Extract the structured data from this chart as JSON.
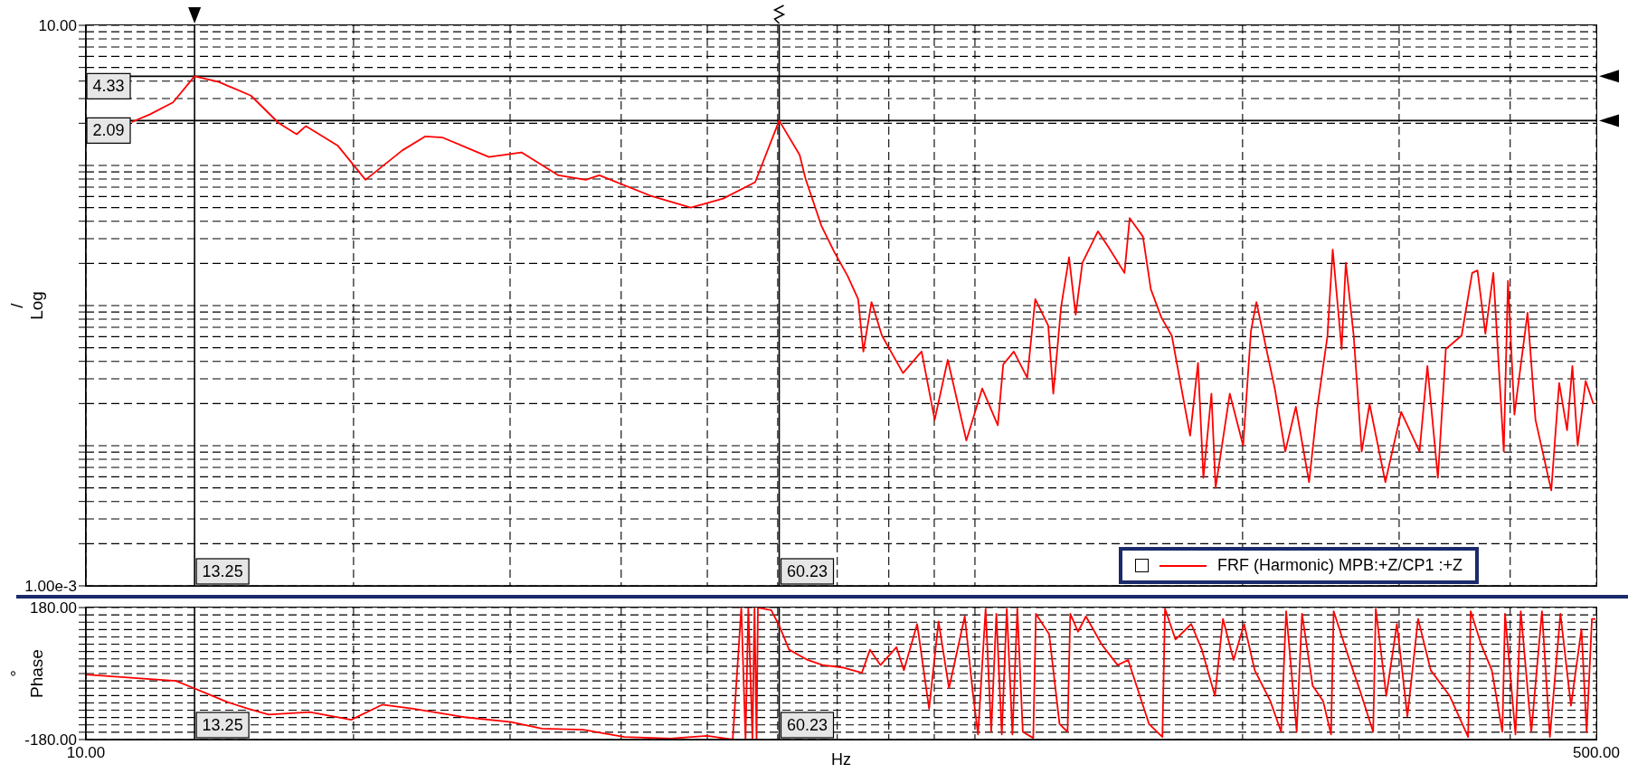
{
  "chart_data": [
    {
      "type": "line",
      "ylabel": "/ Log",
      "log": "xy",
      "grid": true,
      "legend": "bottom right",
      "marker": "none",
      "line_style": "solid",
      "tick_labels": "y",
      "xlim": [
        10,
        500
      ],
      "xticks": [
        {
          "value": 10,
          "label": null
        },
        {
          "value": 20,
          "label": null
        },
        {
          "value": 30,
          "label": null
        },
        {
          "value": 40,
          "label": null
        },
        {
          "value": 50,
          "label": null
        },
        {
          "value": 60,
          "label": null
        },
        {
          "value": 70,
          "label": null
        },
        {
          "value": 80,
          "label": null
        },
        {
          "value": 90,
          "label": null
        },
        {
          "value": 100,
          "label": null
        },
        {
          "value": 200,
          "label": null
        },
        {
          "value": 300,
          "label": null
        },
        {
          "value": 400,
          "label": null
        },
        {
          "value": 500,
          "label": null
        }
      ],
      "ylim": [
        0.001,
        10
      ],
      "yticks": [
        {
          "value": 0.001,
          "label": "1.00e-3"
        },
        {
          "value": 0.002,
          "label": null
        },
        {
          "value": 0.003,
          "label": null
        },
        {
          "value": 0.004,
          "label": null
        },
        {
          "value": 0.005,
          "label": null
        },
        {
          "value": 0.006,
          "label": null
        },
        {
          "value": 0.007,
          "label": null
        },
        {
          "value": 0.008,
          "label": null
        },
        {
          "value": 0.009,
          "label": null
        },
        {
          "value": 0.01,
          "label": null
        },
        {
          "value": 0.02,
          "label": null
        },
        {
          "value": 0.03,
          "label": null
        },
        {
          "value": 0.04,
          "label": null
        },
        {
          "value": 0.05,
          "label": null
        },
        {
          "value": 0.06,
          "label": null
        },
        {
          "value": 0.07,
          "label": null
        },
        {
          "value": 0.08,
          "label": null
        },
        {
          "value": 0.09,
          "label": null
        },
        {
          "value": 0.1,
          "label": null
        },
        {
          "value": 0.2,
          "label": null
        },
        {
          "value": 0.3,
          "label": null
        },
        {
          "value": 0.4,
          "label": null
        },
        {
          "value": 0.5,
          "label": null
        },
        {
          "value": 0.6,
          "label": null
        },
        {
          "value": 0.7,
          "label": null
        },
        {
          "value": 0.8,
          "label": null
        },
        {
          "value": 0.9,
          "label": null
        },
        {
          "value": 1,
          "label": null
        },
        {
          "value": 2,
          "label": null
        },
        {
          "value": 3,
          "label": null
        },
        {
          "value": 4,
          "label": null
        },
        {
          "value": 5,
          "label": null
        },
        {
          "value": 6,
          "label": null
        },
        {
          "value": 7,
          "label": null
        },
        {
          "value": 8,
          "label": null
        },
        {
          "value": 9,
          "label": null
        },
        {
          "value": 10,
          "label": "10.00"
        }
      ],
      "ref_lines": [
        {
          "axis": "y",
          "value": 4.33,
          "label": "4.33"
        },
        {
          "axis": "y",
          "value": 2.09,
          "label": "2.09"
        },
        {
          "axis": "x",
          "value": 13.25,
          "label": "13.25"
        },
        {
          "axis": "x",
          "value": 60.23,
          "label": "60.23"
        }
      ],
      "series": [
        {
          "name": "FRF (Harmonic) MPB:+Z/CP1 :+Z",
          "color": "#ff0000",
          "x": [
            11.26,
            11.81,
            12.53,
            13.25,
            14.11,
            15.33,
            16.47,
            17.26,
            17.68,
            19.21,
            20.63,
            22.69,
            24.07,
            25.2,
            28.4,
            30.9,
            34.0,
            36.5,
            37.8,
            43.1,
            47.9,
            52.1,
            56.6,
            60.23,
            63.5,
            64.5,
            67.2,
            69.5,
            71.9,
            73.9,
            74.9,
            76.5,
            78.6,
            83.0,
            87.1,
            90.1,
            93.2,
            97.8,
            101.9,
            106.1,
            107.6,
            110.6,
            114.5,
            116.9,
            120.9,
            122.5,
            125.0,
            127.6,
            129.8,
            132.1,
            137.5,
            141.3,
            147.3,
            149.3,
            154.5,
            157.7,
            162.1,
            166.5,
            174.6,
            178.2,
            180.7,
            184.5,
            186.5,
            193.5,
            200.3,
            204.4,
            207.3,
            217.4,
            223.4,
            229.6,
            237.6,
            242.5,
            249.2,
            252.6,
            258.5,
            261.3,
            266.7,
            272.3,
            277.9,
            289.5,
            301.6,
            316.3,
            322.8,
            331.7,
            338.6,
            352.7,
            362.5,
            367.5,
            375.1,
            382.9,
            393.4,
            397.7,
            404.4,
            418.4,
            427.1,
            444.9,
            454.1,
            463.5,
            469.9,
            476.4,
            486.3,
            496.3
          ],
          "values": [
            2.04,
            2.32,
            2.82,
            4.33,
            3.94,
            3.15,
            2.01,
            1.67,
            1.91,
            1.38,
            0.79,
            1.28,
            1.61,
            1.58,
            1.15,
            1.24,
            0.85,
            0.79,
            0.85,
            0.61,
            0.5,
            0.58,
            0.76,
            2.09,
            1.19,
            0.8,
            0.37,
            0.24,
            0.163,
            0.111,
            0.047,
            0.106,
            0.061,
            0.033,
            0.047,
            0.0153,
            0.041,
            0.0109,
            0.0256,
            0.014,
            0.038,
            0.047,
            0.0305,
            0.111,
            0.072,
            0.0235,
            0.098,
            0.221,
            0.086,
            0.202,
            0.339,
            0.262,
            0.171,
            0.421,
            0.311,
            0.131,
            0.082,
            0.061,
            0.0118,
            0.039,
            0.0059,
            0.0235,
            0.005,
            0.0235,
            0.01,
            0.066,
            0.106,
            0.0256,
            0.0091,
            0.019,
            0.0055,
            0.018,
            0.061,
            0.251,
            0.049,
            0.202,
            0.061,
            0.0091,
            0.0198,
            0.0055,
            0.0174,
            0.0091,
            0.037,
            0.0059,
            0.049,
            0.061,
            0.171,
            0.178,
            0.063,
            0.171,
            0.0091,
            0.15,
            0.0167,
            0.089,
            0.0153,
            0.0048,
            0.028,
            0.0129,
            0.037,
            0.01,
            0.029,
            0.0198
          ]
        }
      ]
    },
    {
      "type": "line",
      "ylabel": "° Phase",
      "xlabel": "Hz",
      "log": "x",
      "grid": true,
      "marker": "none",
      "line_style": "solid",
      "xlim": [
        10,
        500
      ],
      "xticks": [
        {
          "value": 10,
          "label": "10.00"
        },
        {
          "value": 20,
          "label": null
        },
        {
          "value": 30,
          "label": null
        },
        {
          "value": 40,
          "label": null
        },
        {
          "value": 50,
          "label": null
        },
        {
          "value": 60,
          "label": null
        },
        {
          "value": 70,
          "label": null
        },
        {
          "value": 80,
          "label": null
        },
        {
          "value": 90,
          "label": null
        },
        {
          "value": 100,
          "label": null
        },
        {
          "value": 200,
          "label": null
        },
        {
          "value": 300,
          "label": null
        },
        {
          "value": 400,
          "label": null
        },
        {
          "value": 500,
          "label": "500.00"
        }
      ],
      "ylim": [
        -180,
        180
      ],
      "yticks": [
        {
          "value": -180,
          "label": "-180.00"
        },
        {
          "value": -160,
          "label": null
        },
        {
          "value": -140,
          "label": null
        },
        {
          "value": -120,
          "label": null
        },
        {
          "value": -100,
          "label": null
        },
        {
          "value": -80,
          "label": null
        },
        {
          "value": -60,
          "label": null
        },
        {
          "value": -40,
          "label": null
        },
        {
          "value": -20,
          "label": null
        },
        {
          "value": 0,
          "label": null
        },
        {
          "value": 20,
          "label": null
        },
        {
          "value": 40,
          "label": null
        },
        {
          "value": 60,
          "label": null
        },
        {
          "value": 80,
          "label": null
        },
        {
          "value": 100,
          "label": null
        },
        {
          "value": 120,
          "label": null
        },
        {
          "value": 140,
          "label": null
        },
        {
          "value": 160,
          "label": null
        },
        {
          "value": 180,
          "label": "180.00"
        }
      ],
      "ref_lines": [
        {
          "axis": "x",
          "value": 13.25,
          "label": "13.25"
        },
        {
          "axis": "x",
          "value": 60.23,
          "label": "60.23"
        }
      ],
      "series": [
        {
          "color": "#ff0000",
          "x": [
            10,
            11.05,
            12.62,
            13.14,
            14.43,
            15.22,
            16.05,
            17.86,
            19.88,
            21.54,
            23.33,
            26.66,
            30.07,
            32.58,
            36.25,
            40.34,
            45.49,
            49.95,
            53.4,
            54.6,
            55.2,
            55.6,
            56.2,
            56.5,
            56.8,
            57.0,
            59.0,
            60.2,
            61.8,
            64.7,
            67.4,
            71.2,
            74.6,
            76.2,
            78.3,
            81.6,
            83.2,
            86.1,
            88.8,
            91.0,
            93.5,
            97.4,
            99.4,
            100.8,
            102.8,
            104.3,
            105.7,
            107.2,
            108.6,
            110.2,
            111.6,
            113.2,
            116.3,
            117.1,
            121.2,
            124.5,
            127.1,
            128.0,
            130.6,
            133.3,
            138.9,
            144.7,
            148.7,
            157.0,
            162.5,
            163.6,
            168.1,
            175.1,
            180.0,
            186.2,
            190.1,
            195.4,
            200.8,
            206.4,
            214.9,
            221.0,
            223.9,
            230.1,
            233.3,
            239.8,
            246.4,
            251.5,
            253.2,
            263.8,
            271.1,
            280.5,
            282.4,
            290.2,
            298.3,
            306.5,
            315.1,
            325.6,
            342.0,
            358.7,
            361.1,
            371.1,
            381.4,
            392.0,
            394.7,
            405.5,
            411.1,
            422.5,
            434.3,
            443.3,
            455.6,
            468.2,
            481.1,
            487.6,
            494.3,
            499
          ],
          "values": [
            -3,
            -10,
            -20,
            -37,
            -78,
            -96,
            -112,
            -105,
            -126,
            -85,
            -96,
            -119,
            -132,
            -150,
            -153,
            -173,
            -177,
            -170,
            -180,
            180,
            -180,
            180,
            -180,
            180,
            -180,
            180,
            173,
            132,
            65,
            38,
            23,
            16,
            2,
            65,
            23,
            72,
            9,
            135,
            -96,
            142,
            -40,
            156,
            -47,
            -166,
            177,
            -159,
            163,
            -166,
            177,
            -166,
            177,
            -159,
            -176,
            163,
            107,
            -138,
            -159,
            163,
            114,
            156,
            79,
            23,
            37,
            -138,
            -173,
            177,
            93,
            135,
            65,
            -61,
            149,
            37,
            135,
            9,
            -75,
            -159,
            170,
            -159,
            163,
            -33,
            -75,
            -166,
            170,
            37,
            -47,
            -159,
            177,
            -61,
            135,
            -117,
            149,
            9,
            -61,
            -173,
            170,
            79,
            9,
            -159,
            163,
            -166,
            170,
            -159,
            170,
            -173,
            163,
            -88,
            121,
            -159,
            149,
            149
          ]
        }
      ]
    }
  ]
}
